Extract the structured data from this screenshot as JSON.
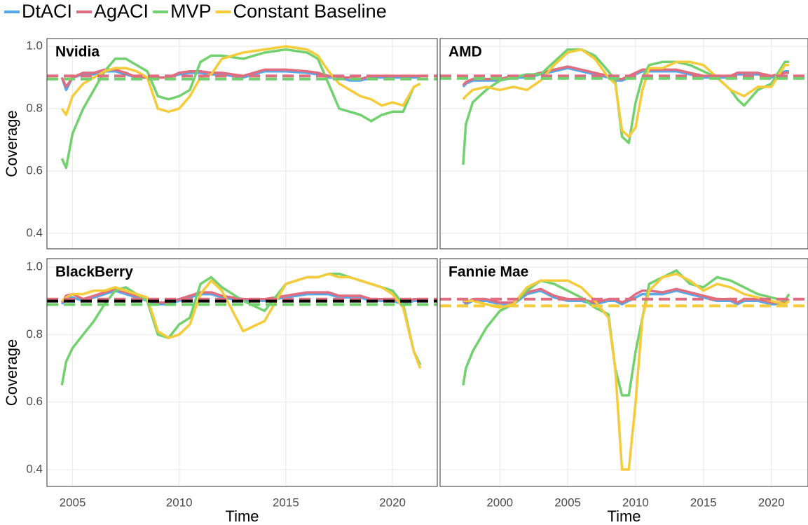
{
  "chart_data": [
    {
      "type": "line",
      "title": "Nvidia",
      "ylabel": "Coverage",
      "x": [
        2004.5,
        2004.7,
        2005,
        2005.5,
        2006,
        2006.5,
        2007,
        2007.5,
        2008,
        2008.5,
        2009,
        2009.5,
        2010,
        2010.5,
        2011,
        2011.5,
        2012,
        2013,
        2014,
        2015,
        2016,
        2016.5,
        2017,
        2017.5,
        2018,
        2018.5,
        2019,
        2019.5,
        2020,
        2020.5,
        2021,
        2021.3
      ],
      "xlim": [
        2003.8,
        2022.1
      ],
      "xticks": [
        2005,
        2010,
        2015,
        2020
      ],
      "ylim": [
        0.35,
        1.025
      ],
      "yticks": [
        0.4,
        0.6,
        0.8,
        {
          "value": 1,
          "label": "1.0"
        }
      ],
      "grid": true,
      "series": [
        {
          "name": "DtACI",
          "color": "#56a8e8",
          "values": [
            0.9,
            0.86,
            0.9,
            0.91,
            0.91,
            0.92,
            0.92,
            0.91,
            0.9,
            0.9,
            0.9,
            0.9,
            0.91,
            0.915,
            0.915,
            0.91,
            0.91,
            0.9,
            0.92,
            0.92,
            0.915,
            0.91,
            0.9,
            0.9,
            0.89,
            0.89,
            0.9,
            0.9,
            0.9,
            0.9,
            0.9,
            0.9
          ]
        },
        {
          "name": "AgACI",
          "color": "#e06c7f",
          "values": [
            0.9,
            0.87,
            0.9,
            0.915,
            0.915,
            0.925,
            0.925,
            0.915,
            0.9,
            0.9,
            0.9,
            0.9,
            0.915,
            0.92,
            0.92,
            0.915,
            0.915,
            0.905,
            0.925,
            0.925,
            0.92,
            0.915,
            0.905,
            0.9,
            0.9,
            0.895,
            0.905,
            0.905,
            0.905,
            0.905,
            0.905,
            0.905
          ]
        },
        {
          "name": "MVP",
          "color": "#72d16f",
          "values": [
            0.64,
            0.61,
            0.72,
            0.8,
            0.86,
            0.92,
            0.96,
            0.96,
            0.94,
            0.92,
            0.84,
            0.83,
            0.84,
            0.86,
            0.95,
            0.97,
            0.97,
            0.96,
            0.98,
            0.99,
            0.98,
            0.96,
            0.88,
            0.8,
            0.79,
            0.78,
            0.76,
            0.78,
            0.79,
            0.79,
            0.87,
            0.88
          ]
        },
        {
          "name": "Constant Baseline",
          "color": "#f5cb3a",
          "values": [
            0.8,
            0.78,
            0.84,
            0.88,
            0.9,
            0.92,
            0.93,
            0.93,
            0.92,
            0.9,
            0.8,
            0.79,
            0.8,
            0.84,
            0.9,
            0.91,
            0.96,
            0.98,
            0.99,
            1.0,
            0.99,
            0.97,
            0.92,
            0.88,
            0.86,
            0.84,
            0.83,
            0.81,
            0.82,
            0.81,
            0.87,
            0.88
          ]
        }
      ],
      "reference_lines": [
        {
          "value": 0.905,
          "color": "#e06c7f"
        },
        {
          "value": 0.895,
          "color": "#72d16f"
        }
      ]
    },
    {
      "type": "line",
      "title": "AMD",
      "x": [
        1997.3,
        1997.5,
        1998,
        1999,
        2000,
        2001,
        2002,
        2003,
        2004,
        2005,
        2006,
        2007,
        2008,
        2008.5,
        2009,
        2009.5,
        2010,
        2010.5,
        2011,
        2012,
        2013,
        2014,
        2015,
        2016,
        2017,
        2017.5,
        2018,
        2019,
        2020,
        2021,
        2021.3
      ],
      "xlim": [
        1995.6,
        2022.7
      ],
      "xticks": [
        2000,
        2005,
        2010,
        2015,
        2020
      ],
      "ylim": [
        0.35,
        1.025
      ],
      "yticks": [
        0.4,
        0.6,
        0.8,
        {
          "value": 1,
          "label": "1.0"
        }
      ],
      "grid": true,
      "series": [
        {
          "name": "DtACI",
          "color": "#56a8e8",
          "values": [
            0.87,
            0.88,
            0.89,
            0.89,
            0.89,
            0.9,
            0.9,
            0.91,
            0.92,
            0.93,
            0.92,
            0.91,
            0.9,
            0.89,
            0.89,
            0.9,
            0.91,
            0.92,
            0.92,
            0.92,
            0.92,
            0.91,
            0.9,
            0.9,
            0.9,
            0.91,
            0.91,
            0.91,
            0.9,
            0.92,
            0.92
          ]
        },
        {
          "name": "AgACI",
          "color": "#e06c7f",
          "values": [
            0.875,
            0.885,
            0.895,
            0.895,
            0.895,
            0.905,
            0.905,
            0.915,
            0.925,
            0.935,
            0.925,
            0.915,
            0.905,
            0.895,
            0.895,
            0.905,
            0.915,
            0.925,
            0.925,
            0.925,
            0.925,
            0.915,
            0.905,
            0.905,
            0.905,
            0.915,
            0.915,
            0.915,
            0.905,
            0.915,
            0.915
          ]
        },
        {
          "name": "MVP",
          "color": "#72d16f",
          "values": [
            0.62,
            0.75,
            0.82,
            0.86,
            0.89,
            0.9,
            0.91,
            0.91,
            0.95,
            0.99,
            0.99,
            0.97,
            0.92,
            0.89,
            0.71,
            0.69,
            0.82,
            0.9,
            0.94,
            0.95,
            0.95,
            0.94,
            0.92,
            0.9,
            0.86,
            0.83,
            0.81,
            0.86,
            0.88,
            0.95,
            0.95
          ]
        },
        {
          "name": "Constant Baseline",
          "color": "#f5cb3a",
          "values": [
            0.83,
            0.84,
            0.86,
            0.87,
            0.86,
            0.87,
            0.86,
            0.89,
            0.94,
            0.98,
            0.99,
            0.96,
            0.9,
            0.88,
            0.73,
            0.71,
            0.74,
            0.86,
            0.93,
            0.93,
            0.95,
            0.95,
            0.94,
            0.9,
            0.86,
            0.85,
            0.84,
            0.87,
            0.87,
            0.94,
            0.94
          ]
        }
      ],
      "reference_lines": [
        {
          "value": 0.905,
          "color": "#e06c7f"
        },
        {
          "value": 0.897,
          "color": "#72d16f"
        }
      ]
    },
    {
      "type": "line",
      "title": "BlackBerry",
      "ylabel": "Coverage",
      "xlabel": "Time",
      "x": [
        2004.5,
        2004.7,
        2005,
        2005.5,
        2006,
        2006.5,
        2007,
        2007.5,
        2008,
        2008.5,
        2009,
        2009.5,
        2010,
        2010.5,
        2011,
        2011.5,
        2012,
        2013,
        2014,
        2015,
        2016,
        2016.5,
        2017,
        2017.5,
        2018,
        2018.5,
        2019,
        2019.5,
        2020,
        2020.5,
        2021,
        2021.3
      ],
      "xlim": [
        2003.8,
        2022.1
      ],
      "xticks": [
        2005,
        2010,
        2015,
        2020
      ],
      "ylim": [
        0.35,
        1.025
      ],
      "yticks": [
        0.4,
        0.6,
        0.8,
        {
          "value": 1,
          "label": "1.0"
        }
      ],
      "grid": true,
      "series": [
        {
          "name": "DtACI",
          "color": "#56a8e8",
          "values": [
            0.89,
            0.91,
            0.91,
            0.9,
            0.91,
            0.92,
            0.93,
            0.92,
            0.91,
            0.9,
            0.89,
            0.89,
            0.9,
            0.91,
            0.92,
            0.92,
            0.91,
            0.9,
            0.9,
            0.91,
            0.92,
            0.92,
            0.92,
            0.91,
            0.91,
            0.91,
            0.9,
            0.9,
            0.9,
            0.89,
            0.9,
            0.9
          ]
        },
        {
          "name": "AgACI",
          "color": "#e06c7f",
          "values": [
            0.895,
            0.915,
            0.92,
            0.905,
            0.915,
            0.925,
            0.935,
            0.925,
            0.915,
            0.905,
            0.895,
            0.895,
            0.905,
            0.915,
            0.925,
            0.925,
            0.915,
            0.905,
            0.905,
            0.915,
            0.925,
            0.925,
            0.925,
            0.915,
            0.915,
            0.915,
            0.905,
            0.905,
            0.905,
            0.895,
            0.905,
            0.905
          ]
        },
        {
          "name": "MVP",
          "color": "#72d16f",
          "values": [
            0.65,
            0.72,
            0.76,
            0.8,
            0.84,
            0.89,
            0.93,
            0.94,
            0.92,
            0.9,
            0.8,
            0.79,
            0.83,
            0.85,
            0.95,
            0.97,
            0.94,
            0.9,
            0.87,
            0.95,
            0.97,
            0.97,
            0.98,
            0.98,
            0.97,
            0.96,
            0.95,
            0.94,
            0.93,
            0.89,
            0.75,
            0.71
          ]
        },
        {
          "name": "Constant Baseline",
          "color": "#f5cb3a",
          "values": [
            0.9,
            0.91,
            0.92,
            0.92,
            0.93,
            0.93,
            0.94,
            0.93,
            0.92,
            0.91,
            0.81,
            0.79,
            0.8,
            0.83,
            0.92,
            0.96,
            0.93,
            0.81,
            0.84,
            0.95,
            0.97,
            0.97,
            0.98,
            0.97,
            0.97,
            0.96,
            0.95,
            0.94,
            0.92,
            0.88,
            0.75,
            0.7
          ]
        }
      ],
      "reference_lines": [
        {
          "value": 0.905,
          "color": "#e06c7f"
        },
        {
          "value": 0.899,
          "color": "#000000"
        },
        {
          "value": 0.889,
          "color": "#72d16f"
        }
      ]
    },
    {
      "type": "line",
      "title": "Fannie Mae",
      "xlabel": "Time",
      "x": [
        1997.3,
        1997.5,
        1998,
        1999,
        2000,
        2001,
        2002,
        2003,
        2004,
        2005,
        2006,
        2007,
        2008,
        2008.5,
        2009,
        2009.5,
        2010,
        2010.5,
        2011,
        2012,
        2013,
        2014,
        2015,
        2016,
        2017,
        2017.5,
        2018,
        2019,
        2020,
        2021,
        2021.3
      ],
      "xlim": [
        1995.6,
        2022.7
      ],
      "xticks": [
        2000,
        2005,
        2010,
        2015,
        2020
      ],
      "ylim": [
        0.35,
        1.025
      ],
      "yticks": [
        0.4,
        0.6,
        0.8,
        {
          "value": 1,
          "label": "1.0"
        }
      ],
      "grid": true,
      "series": [
        {
          "name": "DtACI",
          "color": "#56a8e8",
          "values": [
            0.9,
            0.89,
            0.9,
            0.9,
            0.89,
            0.89,
            0.92,
            0.93,
            0.91,
            0.9,
            0.9,
            0.89,
            0.9,
            0.9,
            0.89,
            0.9,
            0.91,
            0.92,
            0.92,
            0.92,
            0.93,
            0.92,
            0.91,
            0.9,
            0.9,
            0.89,
            0.9,
            0.9,
            0.89,
            0.89,
            0.9
          ]
        },
        {
          "name": "AgACI",
          "color": "#e06c7f",
          "values": [
            0.905,
            0.895,
            0.905,
            0.905,
            0.895,
            0.895,
            0.925,
            0.935,
            0.915,
            0.905,
            0.905,
            0.895,
            0.905,
            0.905,
            0.895,
            0.905,
            0.92,
            0.93,
            0.93,
            0.925,
            0.935,
            0.925,
            0.915,
            0.905,
            0.905,
            0.895,
            0.905,
            0.905,
            0.895,
            0.895,
            0.905
          ]
        },
        {
          "name": "MVP",
          "color": "#72d16f",
          "values": [
            0.65,
            0.7,
            0.75,
            0.82,
            0.87,
            0.89,
            0.93,
            0.96,
            0.95,
            0.93,
            0.91,
            0.88,
            0.86,
            0.7,
            0.62,
            0.62,
            0.75,
            0.85,
            0.95,
            0.97,
            0.99,
            0.95,
            0.94,
            0.97,
            0.96,
            0.95,
            0.94,
            0.92,
            0.91,
            0.9,
            0.92
          ]
        },
        {
          "name": "Constant Baseline",
          "color": "#f5cb3a",
          "values": [
            0.9,
            0.9,
            0.9,
            0.89,
            0.88,
            0.89,
            0.94,
            0.96,
            0.96,
            0.96,
            0.94,
            0.9,
            0.85,
            0.7,
            0.4,
            0.4,
            0.6,
            0.85,
            0.93,
            0.97,
            0.98,
            0.96,
            0.93,
            0.95,
            0.94,
            0.93,
            0.92,
            0.91,
            0.9,
            0.89,
            0.9
          ]
        }
      ],
      "reference_lines": [
        {
          "value": 0.905,
          "color": "#e06c7f"
        },
        {
          "value": 0.885,
          "color": "#f5cb3a"
        }
      ]
    }
  ]
}
